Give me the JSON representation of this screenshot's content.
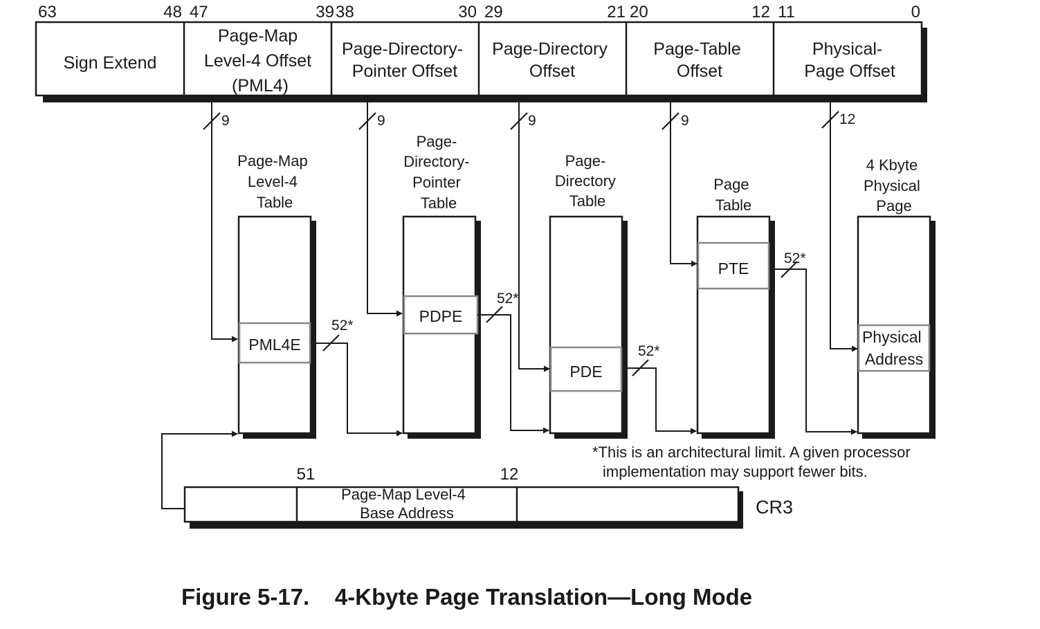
{
  "bit_positions": [
    "63",
    "48",
    "47",
    "39",
    "38",
    "30",
    "29",
    "21",
    "20",
    "12",
    "11",
    "0"
  ],
  "fields": [
    [
      "Sign Extend"
    ],
    [
      "Page-Map",
      "Level-4 Offset",
      "(PML4)"
    ],
    [
      "Page-Directory-",
      "Pointer Offset"
    ],
    [
      "Page-Directory",
      "Offset"
    ],
    [
      "Page-Table",
      "Offset"
    ],
    [
      "Physical-",
      "Page Offset"
    ]
  ],
  "index_widths": [
    "9",
    "9",
    "9",
    "9",
    "12"
  ],
  "tables": [
    {
      "title": [
        "Page-Map",
        "Level-4",
        "Table"
      ],
      "entry": [
        "PML4E"
      ]
    },
    {
      "title": [
        "Page-",
        "Directory-",
        "Pointer",
        "Table"
      ],
      "entry": [
        "PDPE"
      ]
    },
    {
      "title": [
        "Page-",
        "Directory",
        "Table"
      ],
      "entry": [
        "PDE"
      ]
    },
    {
      "title": [
        "Page",
        "Table"
      ],
      "entry": [
        "PTE"
      ]
    },
    {
      "title": [
        "4 Kbyte",
        "Physical",
        "Page"
      ],
      "entry": [
        "Physical",
        "Address"
      ]
    }
  ],
  "pointer_widths": [
    "52*",
    "52*",
    "52*",
    "52*"
  ],
  "footnote": [
    "*This is an architectural limit. A given processor",
    "implementation may support fewer bits."
  ],
  "cr3": {
    "bits_hi": "51",
    "bits_lo": "12",
    "field": [
      "Page-Map Level-4",
      "Base Address"
    ],
    "label": "CR3"
  },
  "caption": "Figure 5-17.    4-Kbyte Page Translation—Long Mode"
}
